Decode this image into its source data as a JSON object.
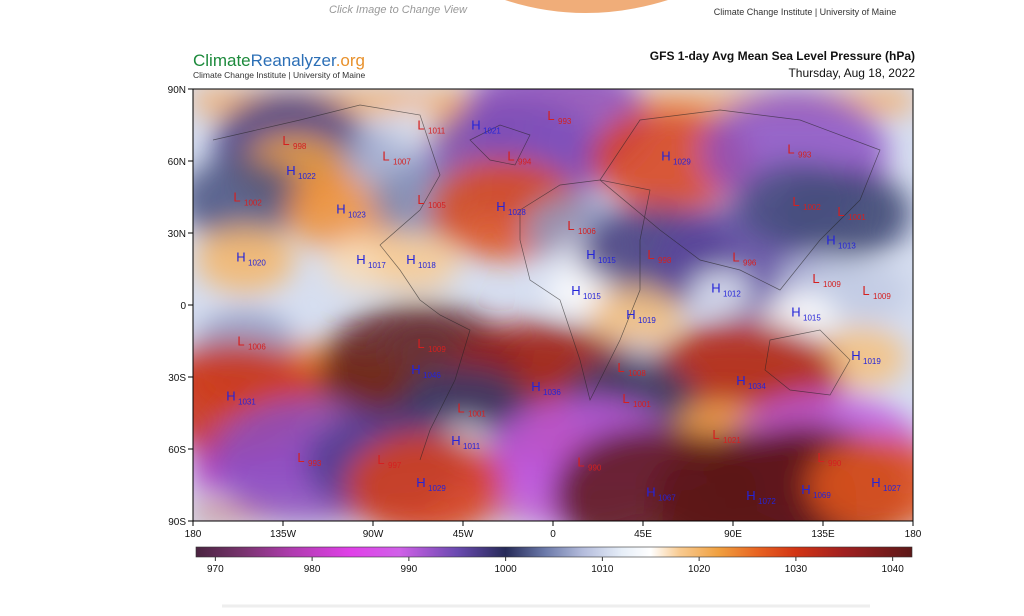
{
  "top": {
    "hint": "Click Image to Change View",
    "credit": "Climate Change Institute | University of Maine"
  },
  "header": {
    "logo": [
      "Climate",
      "Reanalyzer",
      ".org"
    ],
    "logo_sub": "Climate Change Institute | University of Maine",
    "title": "GFS 1-day Avg Mean Sea Level Pressure (hPa)",
    "date": "Thursday, Aug 18, 2022"
  },
  "map": {
    "xlim": [
      -180,
      180
    ],
    "ylim": [
      -90,
      90
    ],
    "xticks": [
      {
        "value": -180,
        "label": "180"
      },
      {
        "value": -135,
        "label": "135W"
      },
      {
        "value": -90,
        "label": "90W"
      },
      {
        "value": -45,
        "label": "45W"
      },
      0,
      {
        "value": 45,
        "label": "45E"
      },
      {
        "value": 90,
        "label": "90E"
      },
      {
        "value": 135,
        "label": "135E"
      },
      {
        "value": 180,
        "label": "180"
      }
    ],
    "yticks": [
      {
        "value": 90,
        "label": "90N"
      },
      {
        "value": 60,
        "label": "60N"
      },
      {
        "value": 30,
        "label": "30N"
      },
      0,
      {
        "value": -30,
        "label": "30S"
      },
      {
        "value": -60,
        "label": "60S"
      },
      {
        "value": -90,
        "label": "90S"
      }
    ],
    "centers": [
      {
        "kind": "L",
        "value": 998,
        "lon": -131.5,
        "lat": 67.5
      },
      {
        "kind": "H",
        "value": 1022,
        "lon": -129,
        "lat": 55
      },
      {
        "kind": "L",
        "value": 1002,
        "lon": -156,
        "lat": 44
      },
      {
        "kind": "H",
        "value": 1023,
        "lon": -104,
        "lat": 39
      },
      {
        "kind": "L",
        "value": 1007,
        "lon": -81.5,
        "lat": 61
      },
      {
        "kind": "L",
        "value": 1011,
        "lon": -64,
        "lat": 74
      },
      {
        "kind": "H",
        "value": 1021,
        "lon": -36.5,
        "lat": 74
      },
      {
        "kind": "L",
        "value": 993,
        "lon": 1,
        "lat": 78
      },
      {
        "kind": "L",
        "value": 994,
        "lon": -19,
        "lat": 61
      },
      {
        "kind": "L",
        "value": 1005,
        "lon": -64,
        "lat": 43
      },
      {
        "kind": "H",
        "value": 1028,
        "lon": -24,
        "lat": 40
      },
      {
        "kind": "H",
        "value": 1029,
        "lon": 58.5,
        "lat": 61
      },
      {
        "kind": "L",
        "value": 993,
        "lon": 121,
        "lat": 64
      },
      {
        "kind": "L",
        "value": 1006,
        "lon": 11,
        "lat": 32
      },
      {
        "kind": "H",
        "value": 1020,
        "lon": -154,
        "lat": 19
      },
      {
        "kind": "H",
        "value": 1017,
        "lon": -94,
        "lat": 18
      },
      {
        "kind": "H",
        "value": 1018,
        "lon": -69,
        "lat": 18
      },
      {
        "kind": "H",
        "value": 1015,
        "lon": 21,
        "lat": 20
      },
      {
        "kind": "L",
        "value": 998,
        "lon": 51,
        "lat": 20
      },
      {
        "kind": "L",
        "value": 996,
        "lon": 93.5,
        "lat": 19
      },
      {
        "kind": "H",
        "value": 1013,
        "lon": 141,
        "lat": 26
      },
      {
        "kind": "L",
        "value": 1001,
        "lon": 146,
        "lat": 38
      },
      {
        "kind": "L",
        "value": 1002,
        "lon": 123.5,
        "lat": 42
      },
      {
        "kind": "H",
        "value": 1015,
        "lon": 13.5,
        "lat": 5
      },
      {
        "kind": "H",
        "value": 1012,
        "lon": 83.5,
        "lat": 6
      },
      {
        "kind": "L",
        "value": 1009,
        "lon": 133.5,
        "lat": 10
      },
      {
        "kind": "L",
        "value": 1009,
        "lon": 158.5,
        "lat": 5
      },
      {
        "kind": "H",
        "value": 1019,
        "lon": 41,
        "lat": -5
      },
      {
        "kind": "H",
        "value": 1015,
        "lon": 123.5,
        "lat": -4
      },
      {
        "kind": "L",
        "value": 1006,
        "lon": -154,
        "lat": -16
      },
      {
        "kind": "L",
        "value": 1009,
        "lon": -64,
        "lat": -17
      },
      {
        "kind": "H",
        "value": 1046,
        "lon": -66.5,
        "lat": -28
      },
      {
        "kind": "H",
        "value": 1019,
        "lon": 153.5,
        "lat": -22
      },
      {
        "kind": "L",
        "value": 1008,
        "lon": 36,
        "lat": -27
      },
      {
        "kind": "H",
        "value": 1031,
        "lon": -159,
        "lat": -39
      },
      {
        "kind": "H",
        "value": 1036,
        "lon": -6.5,
        "lat": -35
      },
      {
        "kind": "H",
        "value": 1034,
        "lon": 96,
        "lat": -32.5
      },
      {
        "kind": "L",
        "value": 1001,
        "lon": 38.5,
        "lat": -40
      },
      {
        "kind": "L",
        "value": 1001,
        "lon": -44,
        "lat": -44
      },
      {
        "kind": "H",
        "value": 1011,
        "lon": -46.5,
        "lat": -57.5
      },
      {
        "kind": "L",
        "value": 1021,
        "lon": 83.5,
        "lat": -55
      },
      {
        "kind": "L",
        "value": 993,
        "lon": -124,
        "lat": -64.5
      },
      {
        "kind": "L",
        "value": 997,
        "lon": -84,
        "lat": -65.5
      },
      {
        "kind": "L",
        "value": 990,
        "lon": 16,
        "lat": -66.5
      },
      {
        "kind": "L",
        "value": 990,
        "lon": 136,
        "lat": -64.5
      },
      {
        "kind": "H",
        "value": 1029,
        "lon": -64,
        "lat": -75
      },
      {
        "kind": "H",
        "value": 1067,
        "lon": 51,
        "lat": -79
      },
      {
        "kind": "H",
        "value": 1072,
        "lon": 101,
        "lat": -80.5
      },
      {
        "kind": "H",
        "value": 1069,
        "lon": 128.5,
        "lat": -78
      },
      {
        "kind": "H",
        "value": 1027,
        "lon": 163.5,
        "lat": -75
      }
    ],
    "kind_colors": {
      "H": "#2424d8",
      "L": "#d42020"
    }
  },
  "colorbar": {
    "range": [
      968,
      1042
    ],
    "ticks": [
      970,
      980,
      990,
      1000,
      1010,
      1020,
      1030,
      1040
    ],
    "colorscale": [
      [
        968,
        "#4a2440"
      ],
      [
        973,
        "#7a3470"
      ],
      [
        978,
        "#b03cb0"
      ],
      [
        984,
        "#e040e8"
      ],
      [
        989,
        "#d060e8"
      ],
      [
        995,
        "#6a4ab0"
      ],
      [
        1000,
        "#262a58"
      ],
      [
        1004,
        "#6a78a8"
      ],
      [
        1008,
        "#b4bcdc"
      ],
      [
        1012,
        "#e6eef8"
      ],
      [
        1015,
        "#ffffff"
      ],
      [
        1018,
        "#f8ca90"
      ],
      [
        1022,
        "#f0a040"
      ],
      [
        1026,
        "#e86422"
      ],
      [
        1030,
        "#d23414"
      ],
      [
        1035,
        "#a02020"
      ],
      [
        1042,
        "#5c1818"
      ]
    ]
  }
}
